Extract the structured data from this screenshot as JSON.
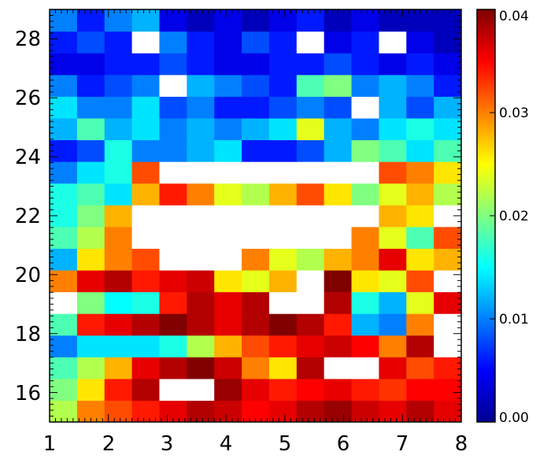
{
  "chart_data": {
    "type": "heatmap",
    "title": "",
    "xlabel": "",
    "ylabel": "",
    "xlim": [
      1,
      8
    ],
    "ylim": [
      15,
      29
    ],
    "x_ticks": [
      "1",
      "2",
      "3",
      "4",
      "5",
      "6",
      "7",
      "8"
    ],
    "y_ticks": [
      "16",
      "18",
      "20",
      "22",
      "24",
      "26",
      "28"
    ],
    "colorbar": {
      "range": [
        0.0,
        0.04
      ],
      "ticks": [
        "0.00",
        "0.01",
        "0.02",
        "0.03",
        "0.04"
      ],
      "colormap": "jet"
    },
    "saturation_color": "#ffffff",
    "grid": [
      [
        0.022,
        0.03,
        0.032,
        0.034,
        0.036,
        0.038,
        0.037,
        0.035,
        0.036,
        0.038,
        0.039,
        0.037,
        0.036,
        0.038,
        0.036
      ],
      [
        0.02,
        0.026,
        0.034,
        0.038,
        0.041,
        0.042,
        0.039,
        0.036,
        0.034,
        0.035,
        0.036,
        0.034,
        0.033,
        0.035,
        0.035
      ],
      [
        0.018,
        0.022,
        0.028,
        0.036,
        0.038,
        0.04,
        0.037,
        0.03,
        0.026,
        0.038,
        0.042,
        0.043,
        0.036,
        0.032,
        0.034
      ],
      [
        0.01,
        0.014,
        0.014,
        0.014,
        0.016,
        0.022,
        0.028,
        0.032,
        0.034,
        0.036,
        0.037,
        0.035,
        0.03,
        0.038,
        0.042
      ],
      [
        0.018,
        0.034,
        0.036,
        0.038,
        0.04,
        0.038,
        0.036,
        0.038,
        0.04,
        0.038,
        0.034,
        0.012,
        0.01,
        0.03,
        0.042
      ],
      [
        0.044,
        0.02,
        0.015,
        0.016,
        0.034,
        0.038,
        0.036,
        0.038,
        0.042,
        0.043,
        0.038,
        0.016,
        0.012,
        0.024,
        0.036
      ],
      [
        0.03,
        0.036,
        0.038,
        0.034,
        0.036,
        0.037,
        0.026,
        0.024,
        0.028,
        0.044,
        0.04,
        0.026,
        0.024,
        0.032,
        0.042
      ],
      [
        0.012,
        0.026,
        0.03,
        0.032,
        0.042,
        0.044,
        0.044,
        0.03,
        0.024,
        0.022,
        0.028,
        0.03,
        0.036,
        0.026,
        0.028
      ],
      [
        0.018,
        0.022,
        0.03,
        0.042,
        0.044,
        0.044,
        0.044,
        0.044,
        0.044,
        0.044,
        0.044,
        0.03,
        0.024,
        0.018,
        0.032
      ],
      [
        0.016,
        0.02,
        0.028,
        0.042,
        0.044,
        0.044,
        0.044,
        0.044,
        0.044,
        0.044,
        0.044,
        0.044,
        0.028,
        0.026,
        0.044
      ],
      [
        0.016,
        0.018,
        0.014,
        0.028,
        0.034,
        0.03,
        0.024,
        0.022,
        0.028,
        0.032,
        0.026,
        0.02,
        0.024,
        0.028,
        0.022
      ],
      [
        0.01,
        0.014,
        0.016,
        0.032,
        0.044,
        0.044,
        0.044,
        0.044,
        0.044,
        0.044,
        0.044,
        0.044,
        0.032,
        0.03,
        0.026
      ],
      [
        0.006,
        0.008,
        0.016,
        0.01,
        0.01,
        0.012,
        0.014,
        0.006,
        0.006,
        0.008,
        0.012,
        0.02,
        0.018,
        0.014,
        0.018
      ],
      [
        0.012,
        0.018,
        0.012,
        0.014,
        0.01,
        0.012,
        0.01,
        0.012,
        0.014,
        0.024,
        0.012,
        0.01,
        0.014,
        0.016,
        0.014
      ],
      [
        0.014,
        0.01,
        0.01,
        0.014,
        0.008,
        0.01,
        0.006,
        0.006,
        0.008,
        0.01,
        0.008,
        0.044,
        0.012,
        0.008,
        0.012
      ],
      [
        0.01,
        0.006,
        0.008,
        0.01,
        0.044,
        0.012,
        0.01,
        0.008,
        0.006,
        0.018,
        0.02,
        0.01,
        0.012,
        0.01,
        0.006
      ],
      [
        0.004,
        0.004,
        0.006,
        0.006,
        0.008,
        0.006,
        0.004,
        0.004,
        0.006,
        0.006,
        0.008,
        0.006,
        0.004,
        0.006,
        0.004
      ],
      [
        0.006,
        0.008,
        0.006,
        0.044,
        0.01,
        0.006,
        0.004,
        0.008,
        0.006,
        0.044,
        0.004,
        0.006,
        0.044,
        0.004,
        0.002
      ],
      [
        0.01,
        0.006,
        0.01,
        0.012,
        0.004,
        0.002,
        0.004,
        0.002,
        0.004,
        0.006,
        0.002,
        0.004,
        0.002,
        0.002,
        0.002
      ]
    ]
  }
}
